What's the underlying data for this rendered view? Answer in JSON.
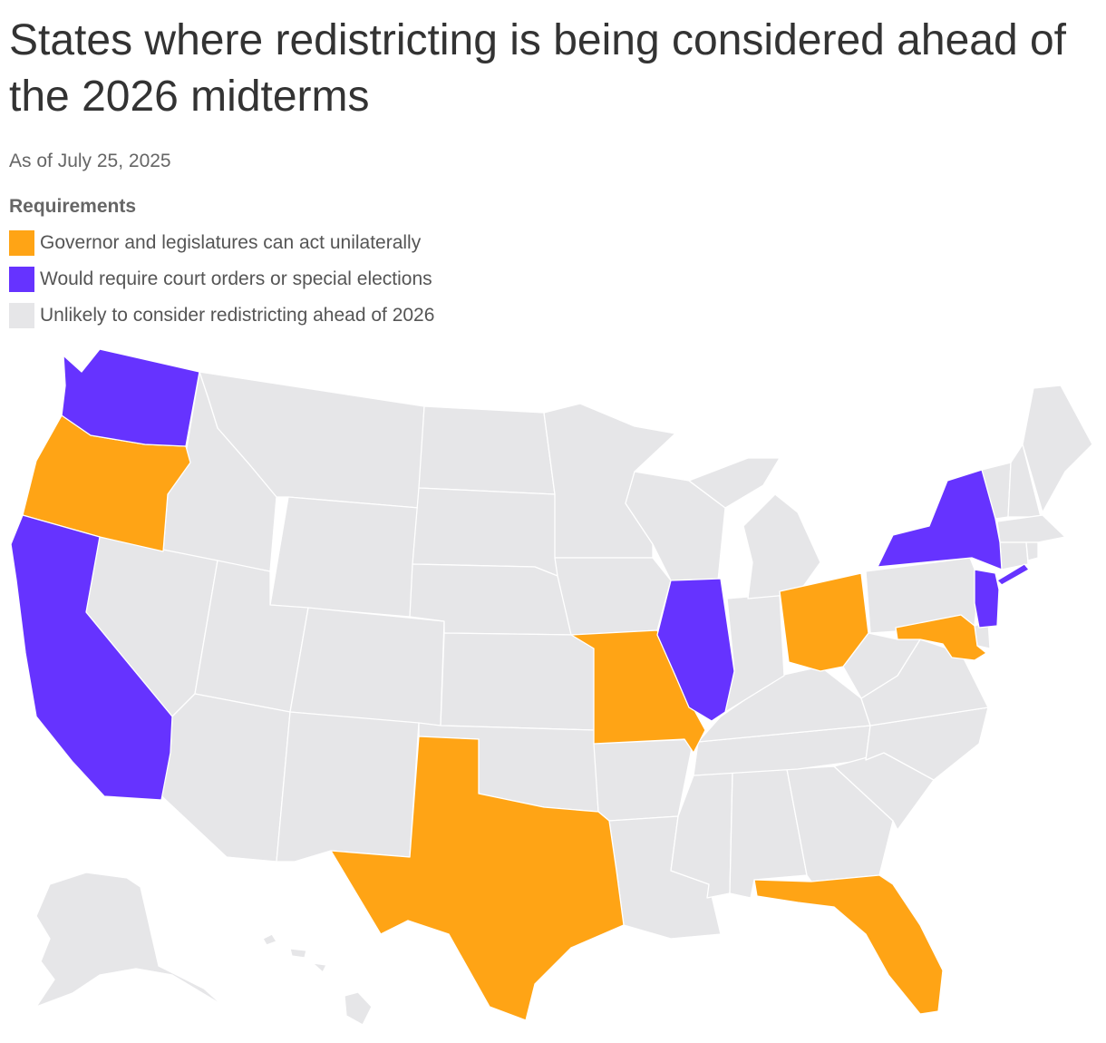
{
  "title": "States where redistricting is being considered ahead of the 2026 midterms",
  "subtitle": "As of July 25, 2025",
  "legend": {
    "title": "Requirements",
    "items": [
      {
        "label": "Governor and legislatures can act unilaterally",
        "color": "#FFA415"
      },
      {
        "label": "Would require court orders or special elections",
        "color": "#6633FF"
      },
      {
        "label": "Unlikely to consider redistricting ahead of 2026",
        "color": "#E6E6E8"
      }
    ]
  },
  "map_data": {
    "categories": {
      "unilateral": [
        "Oregon",
        "Texas",
        "Missouri",
        "Ohio",
        "Maryland",
        "Florida"
      ],
      "court_or_special_election": [
        "Washington",
        "California",
        "Illinois",
        "New York",
        "New Jersey"
      ],
      "unlikely": "All other states"
    },
    "colors": {
      "unilateral": "#FFA415",
      "court_or_special_election": "#6633FF",
      "unlikely": "#E6E6E8",
      "border": "#ffffff"
    }
  }
}
